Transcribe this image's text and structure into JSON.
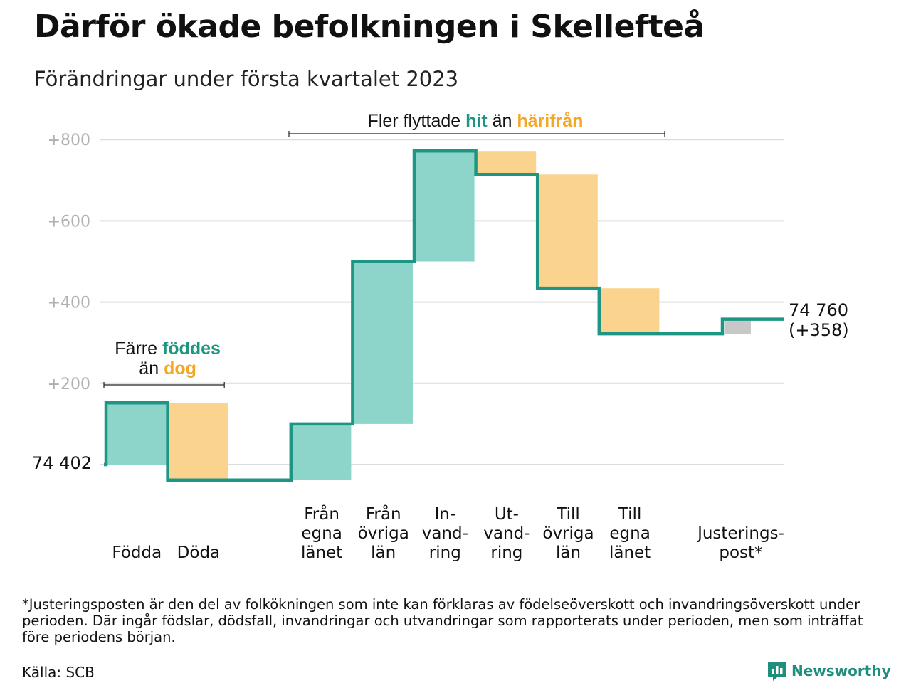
{
  "title": "Därför ökade befolkningen i Skellefteå",
  "subtitle": "Förändringar under första kvartalet 2023",
  "chart_data": {
    "type": "waterfall",
    "start_value_label": "74 402",
    "end_value_label": "74 760",
    "end_change_label": "(+358)",
    "y_ticks": [
      "+200",
      "+400",
      "+600",
      "+800"
    ],
    "ylim": [
      -40,
      820
    ],
    "steps": [
      {
        "label_lines": [
          "Födda"
        ],
        "value": 152,
        "kind": "in"
      },
      {
        "label_lines": [
          "Döda"
        ],
        "value": -190,
        "kind": "out"
      },
      {
        "label_lines": [],
        "value": 0,
        "kind": "gap"
      },
      {
        "label_lines": [
          "Från",
          "egna",
          "länet"
        ],
        "value": 138,
        "kind": "in"
      },
      {
        "label_lines": [
          "Från",
          "övriga",
          "län"
        ],
        "value": 400,
        "kind": "in"
      },
      {
        "label_lines": [
          "In-",
          "vand-",
          "ring"
        ],
        "value": 272,
        "kind": "in"
      },
      {
        "label_lines": [
          "Ut-",
          "vand-",
          "ring"
        ],
        "value": -58,
        "kind": "out"
      },
      {
        "label_lines": [
          "Till",
          "övriga",
          "län"
        ],
        "value": -280,
        "kind": "out"
      },
      {
        "label_lines": [
          "Till",
          "egna",
          "länet"
        ],
        "value": -112,
        "kind": "out"
      },
      {
        "label_lines": [],
        "value": 0,
        "kind": "gap"
      },
      {
        "label_lines": [
          "Justerings-",
          "post*"
        ],
        "value": 36,
        "kind": "adjustment"
      }
    ],
    "annotations": [
      {
        "id": "births",
        "lines": [
          [
            {
              "text": "Färre ",
              "style": "plain"
            },
            {
              "text": "föddes",
              "style": "in"
            }
          ],
          [
            {
              "text": "än ",
              "style": "plain"
            },
            {
              "text": "dog",
              "style": "out"
            }
          ]
        ]
      },
      {
        "id": "migration",
        "lines": [
          [
            {
              "text": "Fler flyttade ",
              "style": "plain"
            },
            {
              "text": "hit",
              "style": "in"
            },
            {
              "text": " än ",
              "style": "plain"
            },
            {
              "text": "härifrån",
              "style": "out"
            }
          ]
        ]
      }
    ],
    "colors": {
      "in_fill": "#8dd5cb",
      "out_fill": "#fad48e",
      "adjustment_fill": "#c8c8c8",
      "line": "#1f9683",
      "in_text": "#1f9683",
      "out_text": "#f5a623",
      "tick_text": "#b0b0b0",
      "grid": "#dcdcdc"
    }
  },
  "footnote": "*Justeringsposten är den del av folkökningen som inte kan förklaras av födelseöverskott och invandringsöverskott under perioden. Där ingår födslar, dödsfall, invandringar och utvandringar som rapporterats under perioden, men som inträffat före periodens början.",
  "source": "Källa: SCB",
  "brand": {
    "name": "Newsworthy",
    "icon": "newsworthy-logo-icon"
  }
}
